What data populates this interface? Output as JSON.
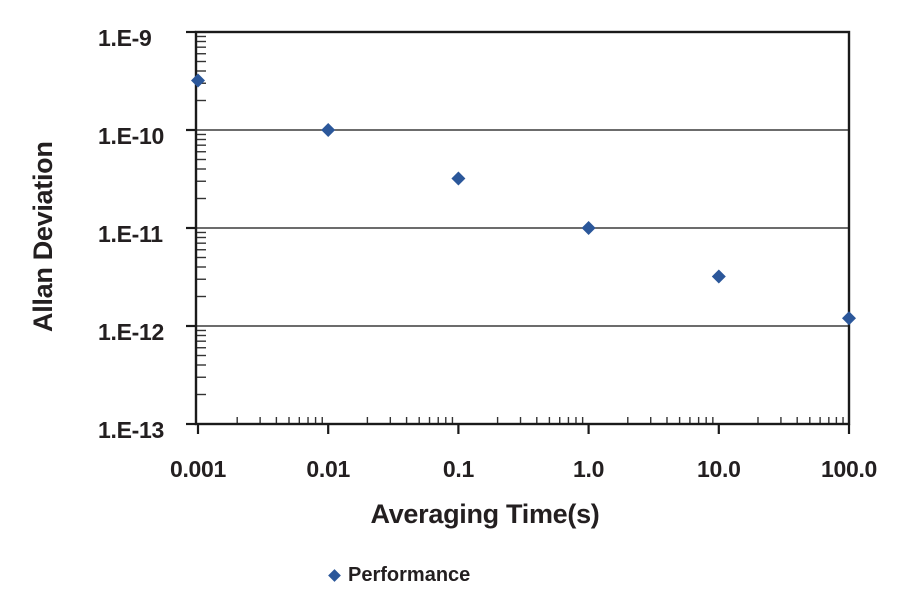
{
  "figure": {
    "background": "#ffffff",
    "text_color": "#231F20",
    "grid_color": "#3c3c3c",
    "axis_color": "#1a1a1a"
  },
  "chart_data": {
    "type": "scatter",
    "title": "",
    "xlabel": "Averaging Time(s)",
    "ylabel": "Allan Deviation",
    "x_scale": "log",
    "y_scale": "log",
    "xlim": [
      0.001,
      100
    ],
    "ylim": [
      1e-13,
      1e-09
    ],
    "x_ticks": [
      0.001,
      0.01,
      0.1,
      1,
      10,
      100
    ],
    "x_tick_labels": [
      "0.001",
      "0.01",
      "0.1",
      "1.0",
      "10.0",
      "100.0"
    ],
    "y_ticks": [
      1e-09,
      1e-10,
      1e-11,
      1e-12,
      1e-13
    ],
    "y_tick_labels": [
      "1.E-9",
      "1.E-10",
      "1.E-11",
      "1.E-12",
      "1.E-13"
    ],
    "grid": "horizontal-major",
    "minor_ticks": "log-decades-inside",
    "legend_position": "below-x-axis",
    "series": [
      {
        "name": "Performance",
        "marker": "diamond",
        "color": "#2B579A",
        "x": [
          0.001,
          0.01,
          0.1,
          1.0,
          10.0,
          100.0
        ],
        "y": [
          3.2e-10,
          1e-10,
          3.2e-11,
          1e-11,
          3.2e-12,
          1.2e-12
        ]
      }
    ]
  }
}
